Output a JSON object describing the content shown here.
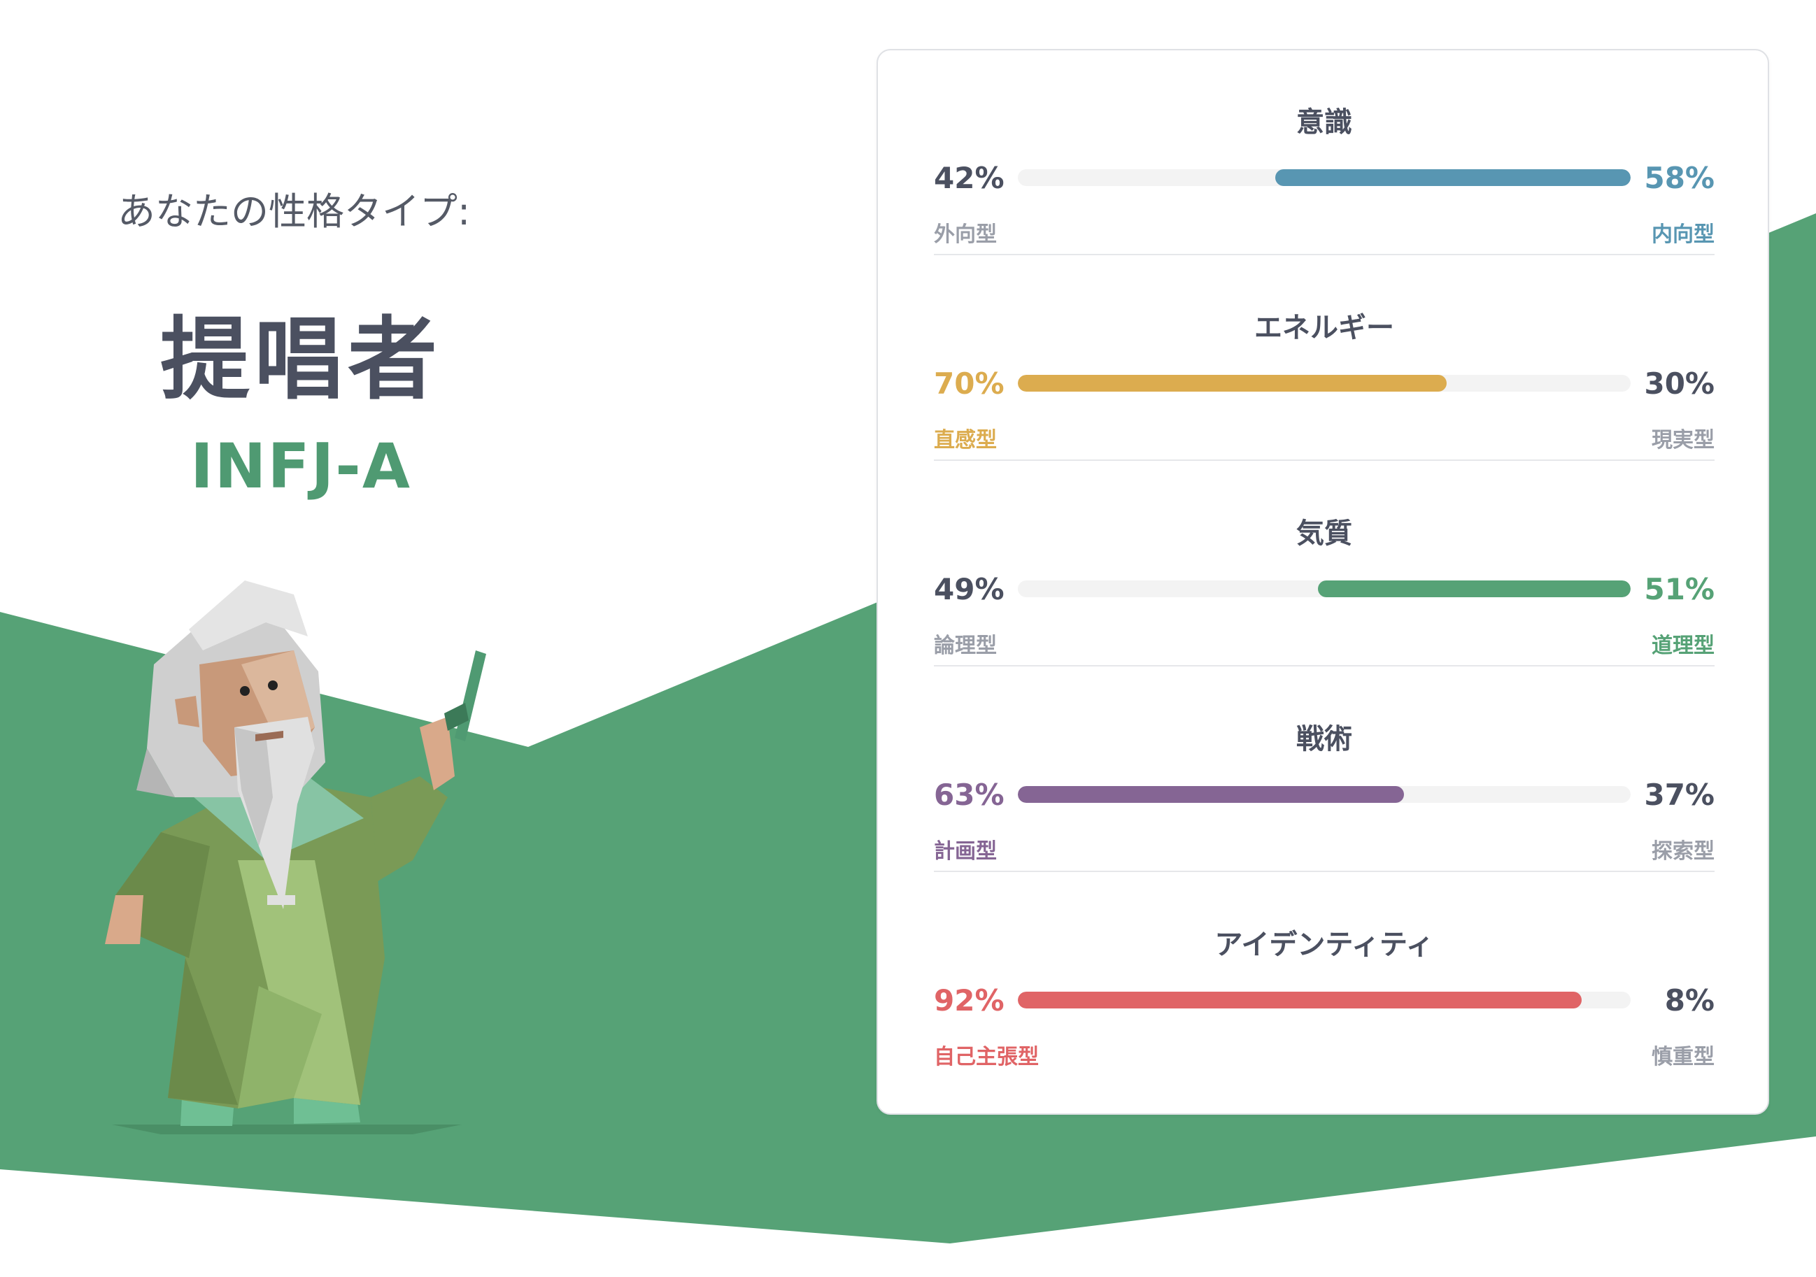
{
  "intro_label": "あなたの性格タイプ:",
  "type_name": "提唱者",
  "type_code": "INFJ-A",
  "colors": {
    "background_green": "#56a276",
    "text_dark": "#4b5060",
    "text_muted": "#9a9ea8",
    "track": "#f3f3f3"
  },
  "traits": [
    {
      "title": "意識",
      "left_pct": "42%",
      "left_label": "外向型",
      "right_pct": "58%",
      "right_label": "内向型",
      "value": 58,
      "dominant": "right",
      "color": "#5896b2"
    },
    {
      "title": "エネルギー",
      "left_pct": "70%",
      "left_label": "直感型",
      "right_pct": "30%",
      "right_label": "現実型",
      "value": 70,
      "dominant": "left",
      "color": "#dcac4f"
    },
    {
      "title": "気質",
      "left_pct": "49%",
      "left_label": "論理型",
      "right_pct": "51%",
      "right_label": "道理型",
      "value": 51,
      "dominant": "right",
      "color": "#56a276"
    },
    {
      "title": "戦術",
      "left_pct": "63%",
      "left_label": "計画型",
      "right_pct": "37%",
      "right_label": "探索型",
      "value": 63,
      "dominant": "left",
      "color": "#856594"
    },
    {
      "title": "アイデンティティ",
      "left_pct": "92%",
      "left_label": "自己主張型",
      "right_pct": "8%",
      "right_label": "慎重型",
      "value": 92,
      "dominant": "left",
      "color": "#e06466"
    }
  ]
}
